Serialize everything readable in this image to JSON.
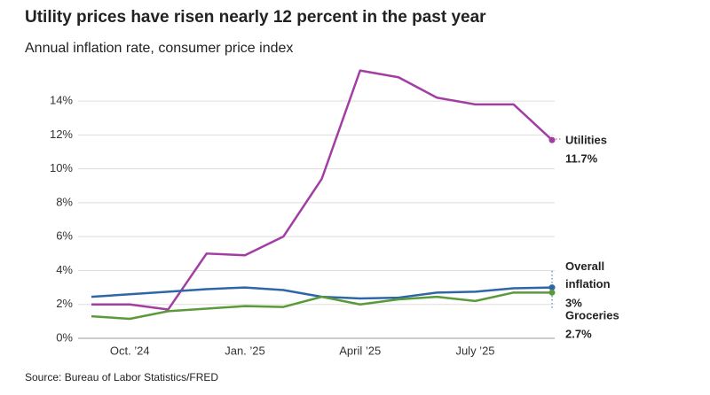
{
  "chart_data": {
    "type": "line",
    "title": "Utility prices have risen nearly 12 percent in the past year",
    "subtitle": "Annual inflation rate, consumer price index",
    "source": "Source: Bureau of Labor Statistics/FRED",
    "categories": [
      null,
      "Oct. ’24",
      null,
      null,
      "Jan. ’25",
      null,
      null,
      "April ’25",
      null,
      null,
      "July ’25",
      null,
      null
    ],
    "ylim": [
      0,
      16
    ],
    "yticks": [
      {
        "value": 0,
        "label": "0%"
      },
      {
        "value": 2,
        "label": "2%"
      },
      {
        "value": 4,
        "label": "4%"
      },
      {
        "value": 6,
        "label": "6%"
      },
      {
        "value": 8,
        "label": "8%"
      },
      {
        "value": 10,
        "label": "10%"
      },
      {
        "value": 12,
        "label": "12%"
      },
      {
        "value": 14,
        "label": "14%"
      }
    ],
    "grid": true,
    "series": [
      {
        "name": "Utilities",
        "color": "#a23ea3",
        "values": [
          2.0,
          2.0,
          1.7,
          5.0,
          4.9,
          6.0,
          9.4,
          15.8,
          15.4,
          14.2,
          13.8,
          13.8,
          11.7
        ],
        "value_labels": [
          null,
          null,
          null,
          null,
          null,
          null,
          null,
          null,
          null,
          null,
          null,
          null,
          "11.7%"
        ]
      },
      {
        "name": "Overall inflation",
        "color": "#2f66a8",
        "values": [
          2.45,
          2.6,
          2.75,
          2.9,
          3.0,
          2.85,
          2.45,
          2.35,
          2.4,
          2.7,
          2.75,
          2.95,
          3.0
        ],
        "value_labels": [
          null,
          null,
          null,
          null,
          null,
          null,
          null,
          null,
          null,
          null,
          null,
          null,
          "3%"
        ]
      },
      {
        "name": "Groceries",
        "color": "#5a9a3a",
        "values": [
          1.3,
          1.15,
          1.6,
          1.75,
          1.9,
          1.85,
          2.45,
          2.0,
          2.3,
          2.45,
          2.2,
          2.7,
          2.7
        ],
        "value_labels": [
          null,
          null,
          null,
          null,
          null,
          null,
          null,
          null,
          null,
          null,
          null,
          null,
          "2.7%"
        ]
      }
    ]
  }
}
